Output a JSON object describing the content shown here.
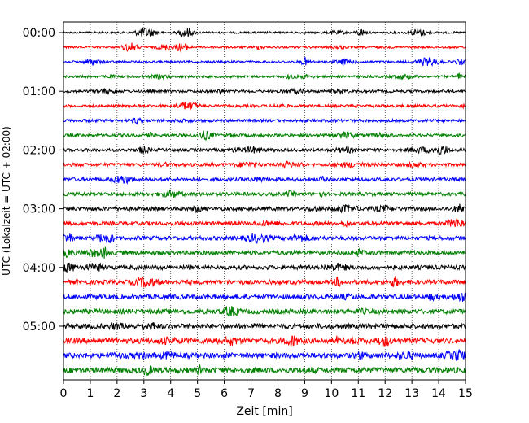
{
  "chart_data": {
    "type": "line",
    "title": "",
    "xlabel": "Zeit  [min]",
    "ylabel": "UTC (Lokalzeit = UTC + 02:00)",
    "xlim": [
      0,
      15
    ],
    "x_ticks": [
      "0",
      "1",
      "2",
      "3",
      "4",
      "5",
      "6",
      "7",
      "8",
      "9",
      "10",
      "11",
      "12",
      "13",
      "14",
      "15"
    ],
    "y_ticks": [
      "00:00",
      "01:00",
      "02:00",
      "03:00",
      "04:00",
      "05:00"
    ],
    "grid": "vertical dotted",
    "trace_colors": [
      "#000000",
      "#ff0000",
      "#0000ff",
      "#008000"
    ],
    "traces_count": 24,
    "minutes_per_trace": 15
  }
}
